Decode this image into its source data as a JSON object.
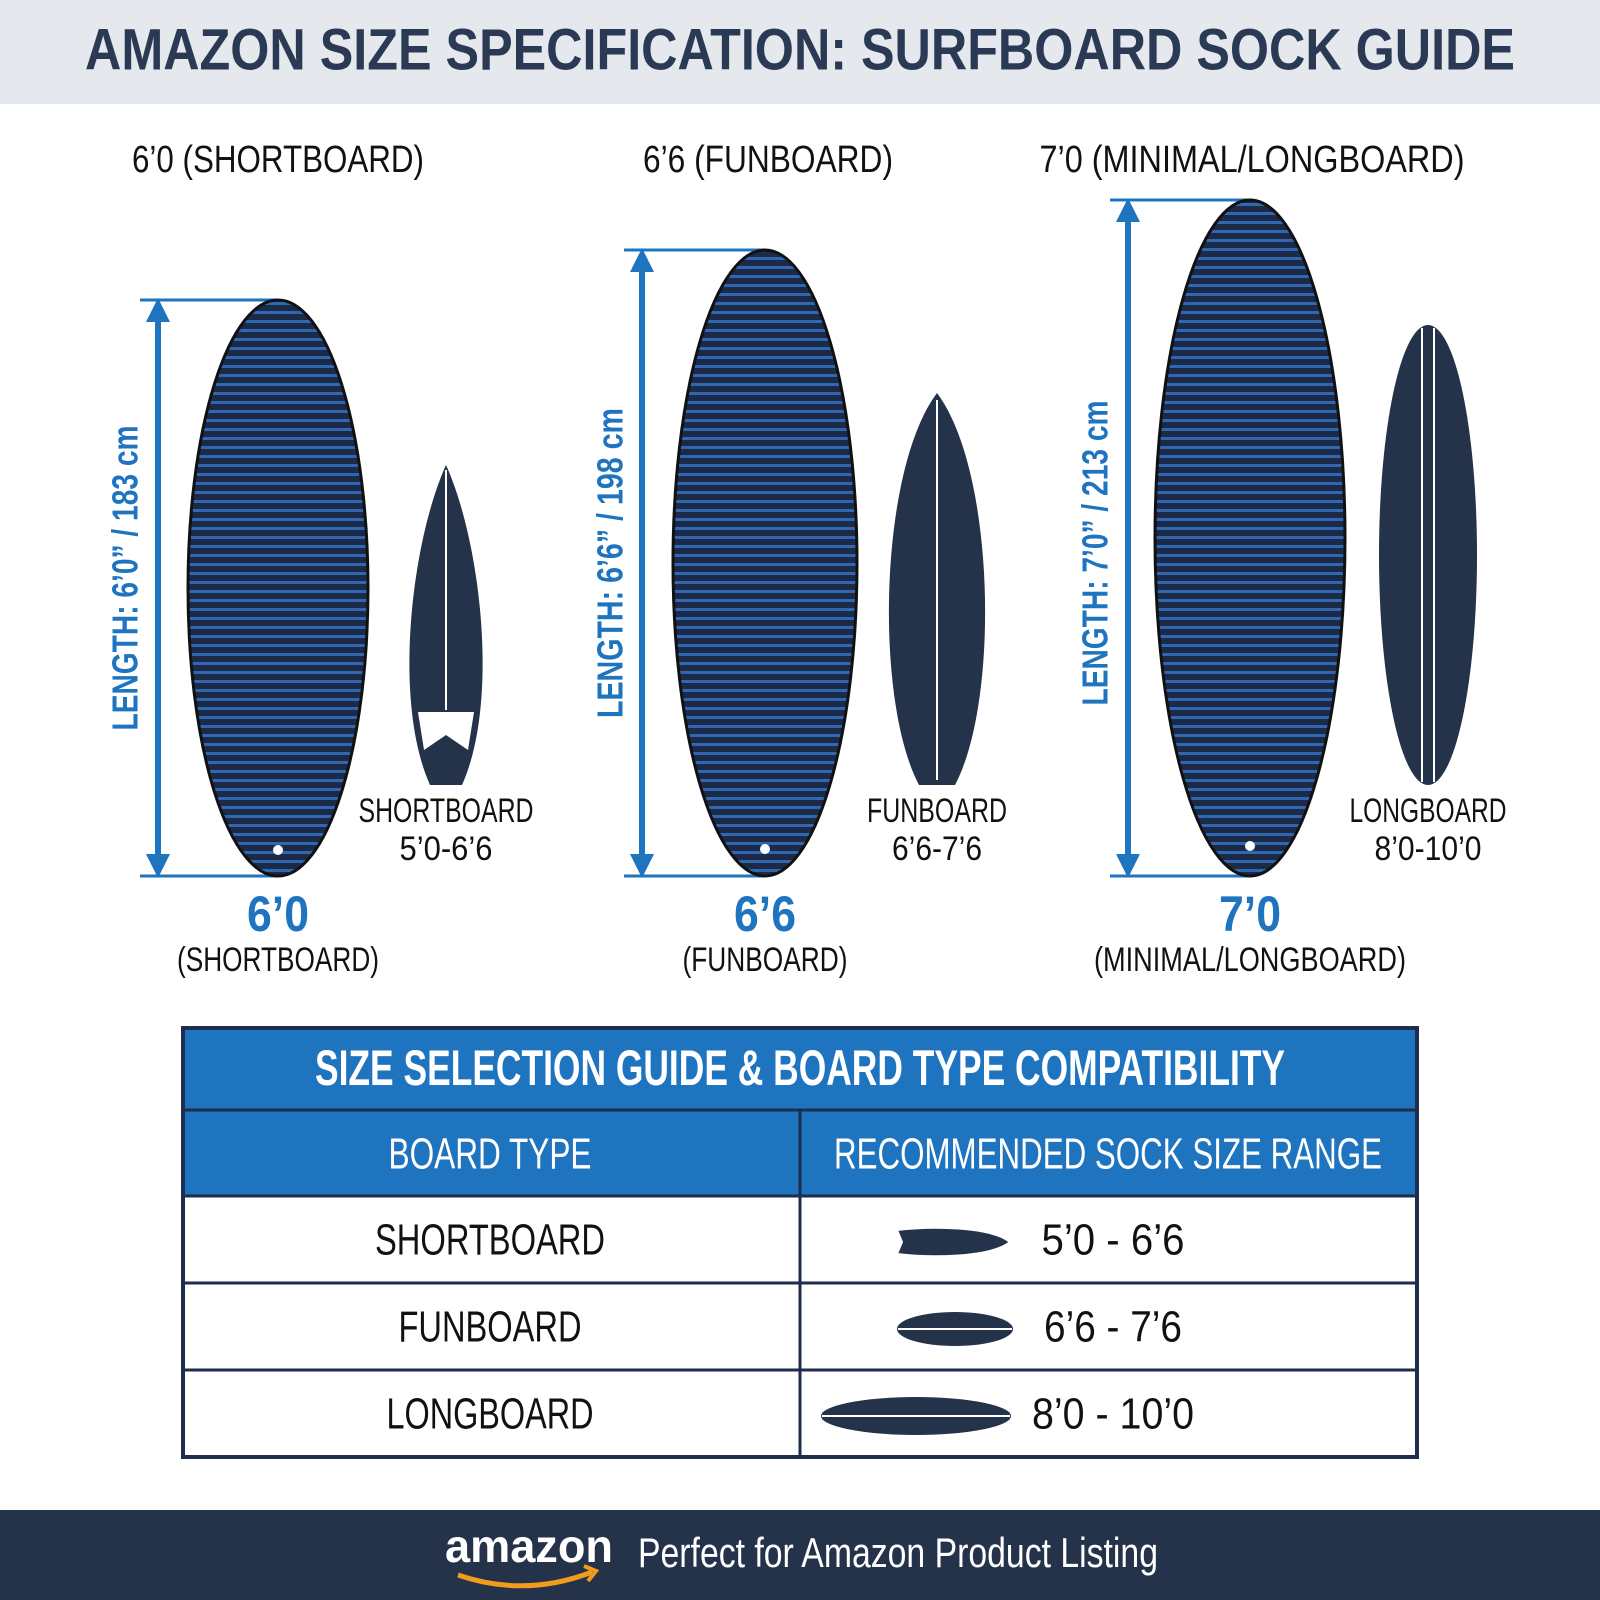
{
  "header": {
    "title": "AMAZON SIZE SPECIFICATION: SURFBOARD SOCK GUIDE"
  },
  "panels": [
    {
      "heading": "6’0 (SHORTBOARD)",
      "length_label": "LENGTH: 6’0” / 183 cm",
      "board_label": "SHORTBOARD",
      "board_range": "5’0-6’6",
      "size": "6’0",
      "size_type": "(SHORTBOARD)"
    },
    {
      "heading": "6’6 (FUNBOARD)",
      "length_label": "LENGTH: 6’6” / 198 cm",
      "board_label": "FUNBOARD",
      "board_range": "6’6-7’6",
      "size": "6’6",
      "size_type": "(FUNBOARD)"
    },
    {
      "heading": "7’0 (MINIMAL/LONGBOARD)",
      "length_label": "LENGTH: 7’0” / 213 cm",
      "board_label": "LONGBOARD",
      "board_range": "8’0-10’0",
      "size": "7’0",
      "size_type": "(MINIMAL/LONGBOARD)"
    }
  ],
  "table": {
    "title": "SIZE SELECTION GUIDE & BOARD TYPE COMPATIBILITY",
    "headers": [
      "BOARD TYPE",
      "RECOMMENDED SOCK SIZE RANGE"
    ],
    "rows": [
      [
        "SHORTBOARD",
        "5’0 - 6’6"
      ],
      [
        "FUNBOARD",
        "6’6 - 7’6"
      ],
      [
        "LONGBOARD",
        "8’0 - 10’0"
      ]
    ]
  },
  "footer": {
    "logo": "amazon",
    "text": "Perfect for Amazon Product Listing"
  }
}
